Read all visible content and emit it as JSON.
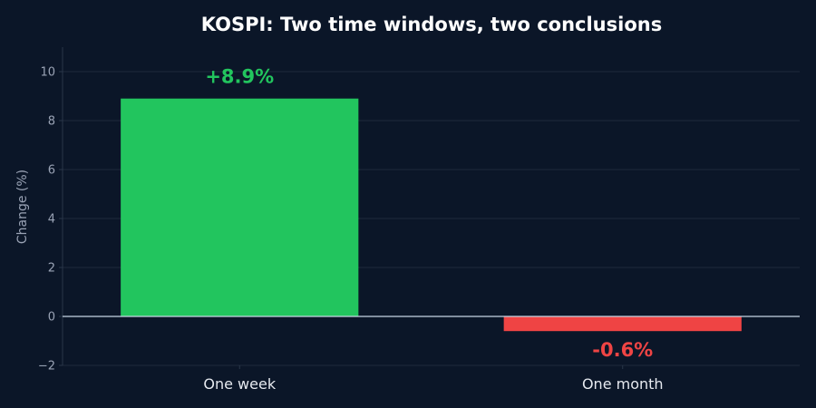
{
  "chart_data": {
    "type": "bar",
    "title": "KOSPI: Two time windows, two conclusions",
    "xlabel": "",
    "ylabel": "Change (%)",
    "categories": [
      "One week",
      "One month"
    ],
    "values": [
      8.9,
      -0.6
    ],
    "data_labels": [
      "+8.9%",
      "-0.6%"
    ],
    "ylim": [
      -2,
      11
    ],
    "yticks": [
      -2,
      0,
      2,
      4,
      6,
      8,
      10
    ],
    "ytick_labels": [
      "−2",
      "0",
      "2",
      "4",
      "6",
      "8",
      "10"
    ],
    "grid": true,
    "legend": "none",
    "colors": {
      "background": "#0b1628",
      "positive": "#22c55e",
      "negative": "#ef4444",
      "grid": "#1f2b3d",
      "zero_line": "#c7d6e4",
      "axis": "#2a3649"
    }
  }
}
